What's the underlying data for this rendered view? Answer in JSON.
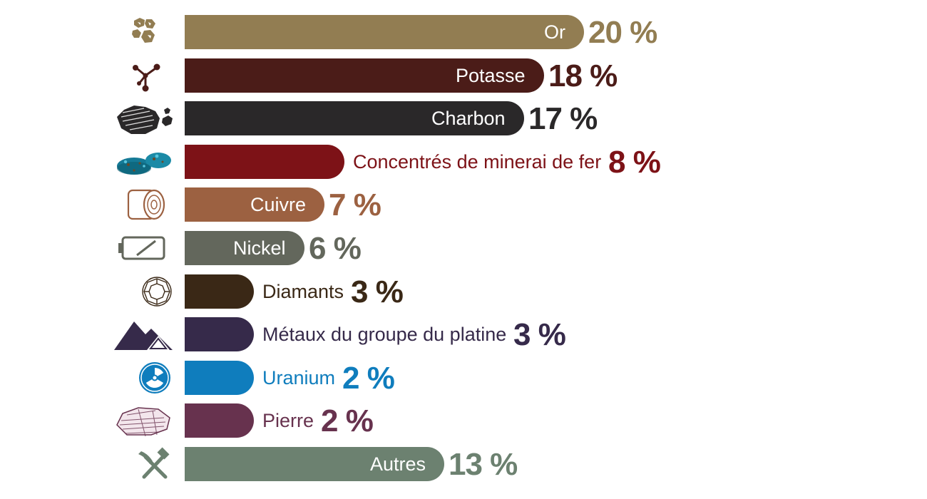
{
  "chart_data": {
    "type": "bar",
    "orientation": "horizontal",
    "unit": "%",
    "categories": [
      "Or",
      "Potasse",
      "Charbon",
      "Concentrés de minerai de fer",
      "Cuivre",
      "Nickel",
      "Diamants",
      "Métaux du groupe du platine",
      "Uranium",
      "Pierre",
      "Autres"
    ],
    "values": [
      20,
      18,
      17,
      8,
      7,
      6,
      3,
      3,
      2,
      2,
      13
    ],
    "value_labels": [
      "20 %",
      "18 %",
      "17 %",
      "8 %",
      "7 %",
      "6 %",
      "3 %",
      "3 %",
      "2 %",
      "2 %",
      "13 %"
    ],
    "colors": [
      "#927d52",
      "#4b1c18",
      "#2a2829",
      "#7d1217",
      "#9c6141",
      "#63675c",
      "#3a2816",
      "#362a4a",
      "#0f7dbd",
      "#67324e",
      "#6c8170"
    ],
    "icons": [
      "gold-nuggets-icon",
      "molecule-icon",
      "coal-icon",
      "iron-ore-icon",
      "copper-roll-icon",
      "battery-icon",
      "diamond-icon",
      "mountain-icon",
      "radiation-icon",
      "stone-icon",
      "pick-hammer-icon"
    ],
    "label_position": [
      "inside",
      "inside",
      "inside",
      "outside",
      "inside",
      "inside",
      "outside",
      "outside",
      "outside",
      "outside",
      "inside"
    ],
    "xlim": [
      0,
      20
    ],
    "title": "",
    "xlabel": "",
    "ylabel": "",
    "grid": false,
    "legend": "none"
  }
}
